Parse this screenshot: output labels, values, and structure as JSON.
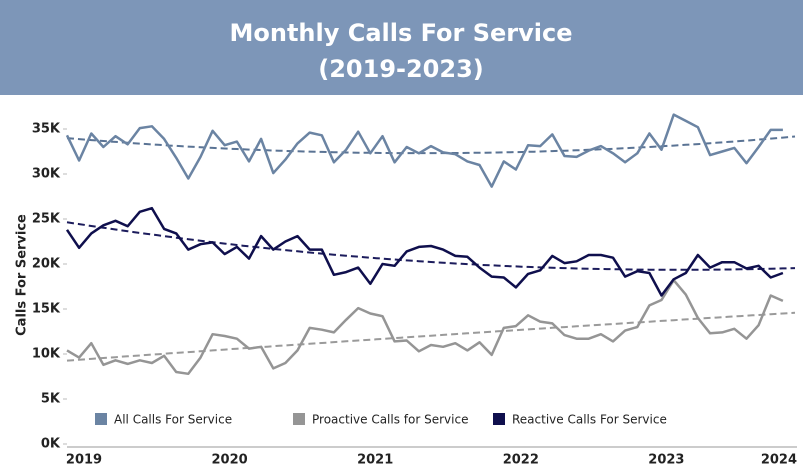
{
  "chart_data": {
    "type": "line",
    "title": "Monthly Calls For Service",
    "subtitle": "(2019-2023)",
    "y_label": "Calls For Service",
    "categories": [
      "2019",
      null,
      null,
      null,
      null,
      null,
      null,
      null,
      null,
      null,
      null,
      null,
      "2020",
      null,
      null,
      null,
      null,
      null,
      null,
      null,
      null,
      null,
      null,
      null,
      "2021",
      null,
      null,
      null,
      null,
      null,
      null,
      null,
      null,
      null,
      null,
      null,
      "2022",
      null,
      null,
      null,
      null,
      null,
      null,
      null,
      null,
      null,
      null,
      null,
      "2023",
      null,
      null,
      null,
      null,
      null,
      null,
      null,
      null,
      null,
      null,
      null,
      "2024"
    ],
    "ylim": [
      0,
      38000
    ],
    "yticks": [
      {
        "value": 0,
        "label": "0K"
      },
      {
        "value": 5000,
        "label": "5K"
      },
      {
        "value": 10000,
        "label": "10K"
      },
      {
        "value": 15000,
        "label": "15K"
      },
      {
        "value": 20000,
        "label": "20K"
      },
      {
        "value": 25000,
        "label": "25K"
      },
      {
        "value": 30000,
        "label": "30K"
      },
      {
        "value": 35000,
        "label": "35K"
      }
    ],
    "trendline": true,
    "legend": "bottom",
    "series": [
      {
        "name": "All Calls For Service",
        "color": "#6b84a3",
        "trend_color": "#5a7394",
        "values": [
          34300,
          31500,
          34500,
          33000,
          34200,
          33300,
          35100,
          35300,
          33900,
          31800,
          29500,
          31900,
          34800,
          33200,
          33600,
          31400,
          33900,
          30100,
          31600,
          33400,
          34600,
          34300,
          31300,
          32700,
          34700,
          32300,
          34200,
          31300,
          33000,
          32300,
          33100,
          32400,
          32200,
          31400,
          31000,
          28600,
          31400,
          30500,
          33200,
          33100,
          34400,
          32000,
          31900,
          32600,
          33100,
          32300,
          31300,
          32300,
          34500,
          32700,
          36600,
          35900,
          35200,
          32100,
          32500,
          32900,
          31200,
          33000,
          34900,
          34900,
          null
        ]
      },
      {
        "name": "Proactive Calls for Service",
        "color": "#959595",
        "trend_color": "#9a9a9a",
        "values": [
          10400,
          9600,
          11200,
          8800,
          9300,
          8900,
          9300,
          9000,
          9800,
          8000,
          7800,
          9600,
          12200,
          12000,
          11700,
          10600,
          10800,
          8400,
          9000,
          10400,
          12900,
          12700,
          12400,
          13800,
          15100,
          14500,
          14200,
          11400,
          11500,
          10300,
          11000,
          10800,
          11200,
          10400,
          11300,
          9900,
          12900,
          13100,
          14300,
          13600,
          13400,
          12100,
          11700,
          11700,
          12200,
          11400,
          12600,
          13000,
          15400,
          16000,
          18200,
          16600,
          14000,
          12300,
          12400,
          12800,
          11700,
          13200,
          16500,
          15900,
          null
        ]
      },
      {
        "name": "Reactive Calls For Service",
        "color": "#0f0f4d",
        "trend_color": "#1c1c5c",
        "values": [
          23800,
          21800,
          23400,
          24300,
          24800,
          24200,
          25800,
          26200,
          23900,
          23400,
          21600,
          22200,
          22400,
          21100,
          21900,
          20600,
          23100,
          21600,
          22500,
          23100,
          21600,
          21600,
          18800,
          19100,
          19600,
          17800,
          20000,
          19800,
          21400,
          21900,
          22000,
          21600,
          20900,
          20800,
          19600,
          18600,
          18500,
          17400,
          18900,
          19300,
          20900,
          20100,
          20300,
          21000,
          21000,
          20700,
          18600,
          19200,
          19000,
          16500,
          18300,
          19000,
          21000,
          19600,
          20200,
          20200,
          19500,
          19800,
          18500,
          19000,
          null
        ]
      }
    ]
  }
}
